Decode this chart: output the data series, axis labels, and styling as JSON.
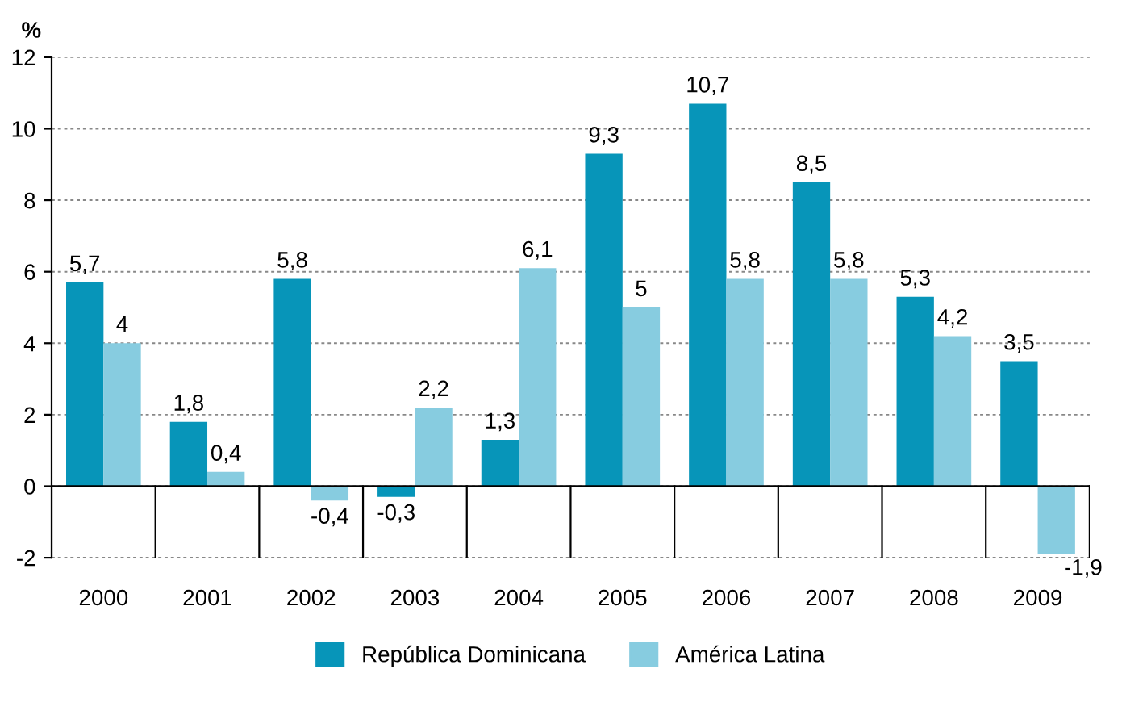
{
  "chart_data": {
    "type": "bar",
    "ylabel": "%",
    "categories": [
      "2000",
      "2001",
      "2002",
      "2003",
      "2004",
      "2005",
      "2006",
      "2007",
      "2008",
      "2009"
    ],
    "series": [
      {
        "name": "República Dominicana",
        "color": "#0795b9",
        "values": [
          5.7,
          1.8,
          5.8,
          -0.3,
          1.3,
          9.3,
          10.7,
          8.5,
          5.3,
          3.5
        ],
        "value_labels": [
          "5,7",
          "1,8",
          "5,8",
          "-0,3",
          "1,3",
          "9,3",
          "10,7",
          "8,5",
          "5,3",
          "3,5"
        ]
      },
      {
        "name": "América Latina",
        "color": "#87cce0",
        "values": [
          4,
          0.4,
          -0.4,
          2.2,
          6.1,
          5,
          5.8,
          5.8,
          4.2,
          -1.9
        ],
        "value_labels": [
          "4",
          "0,4",
          "-0,4",
          "2,2",
          "6,1",
          "5",
          "5,8",
          "5,8",
          "4,2",
          "-1,9"
        ]
      }
    ],
    "ylim": [
      -2,
      12
    ],
    "yticks": [
      {
        "value": -2,
        "label": "-2"
      },
      0,
      2,
      4,
      6,
      8,
      10,
      12
    ],
    "grid": "y",
    "legend": "bottom"
  }
}
